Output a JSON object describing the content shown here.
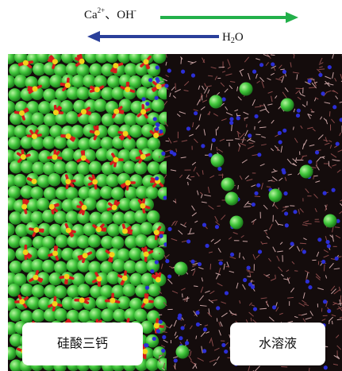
{
  "arrows": [
    {
      "label_parts": [
        "Ca",
        "2+",
        "、OH",
        "-"
      ]
    },
    {
      "label_parts": [
        "H",
        "2",
        "O"
      ]
    }
  ],
  "regions": [
    {
      "label": "硅酸三钙"
    },
    {
      "label": "水溶液"
    }
  ]
}
